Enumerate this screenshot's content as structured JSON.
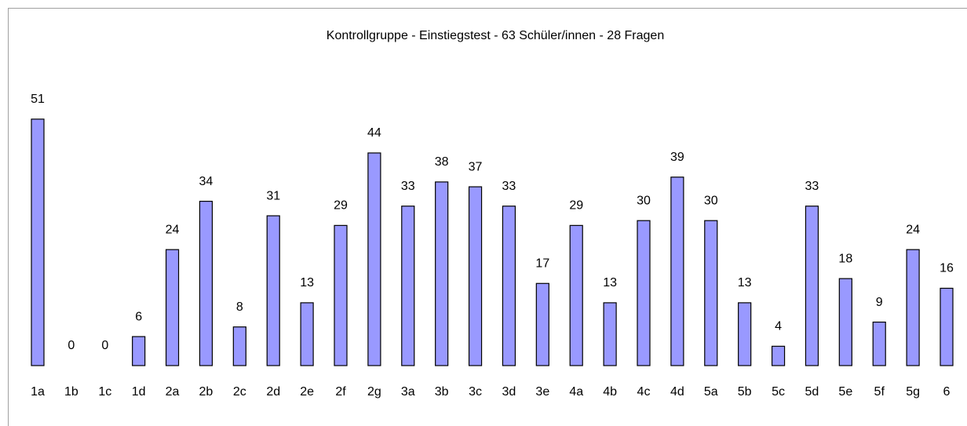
{
  "chart_data": {
    "type": "bar",
    "title": "Kontrollgruppe - Einstiegstest - 63 Schüler/innen - 28 Fragen",
    "categories": [
      "1a",
      "1b",
      "1c",
      "1d",
      "2a",
      "2b",
      "2c",
      "2d",
      "2e",
      "2f",
      "2g",
      "3a",
      "3b",
      "3c",
      "3d",
      "3e",
      "4a",
      "4b",
      "4c",
      "4d",
      "5a",
      "5b",
      "5c",
      "5d",
      "5e",
      "5f",
      "5g",
      "6"
    ],
    "values": [
      51,
      0,
      0,
      6,
      24,
      34,
      8,
      31,
      13,
      29,
      44,
      33,
      38,
      37,
      33,
      17,
      29,
      13,
      30,
      39,
      30,
      13,
      4,
      33,
      18,
      9,
      24,
      16
    ],
    "color": "#9999ff"
  }
}
